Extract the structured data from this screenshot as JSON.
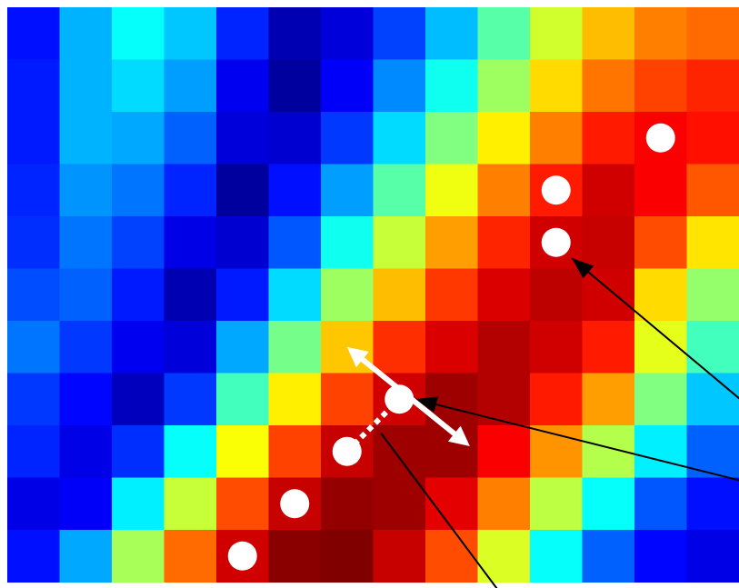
{
  "heatmap": {
    "colormap": "jet",
    "rows": 11,
    "cols": 14,
    "value_range": [
      0,
      1
    ],
    "values": [
      [
        0.14,
        0.3,
        0.38,
        0.32,
        0.16,
        0.05,
        0.09,
        0.19,
        0.31,
        0.46,
        0.58,
        0.69,
        0.75,
        0.77
      ],
      [
        0.15,
        0.3,
        0.34,
        0.28,
        0.11,
        0.03,
        0.12,
        0.26,
        0.39,
        0.53,
        0.66,
        0.76,
        0.81,
        0.84
      ],
      [
        0.15,
        0.3,
        0.29,
        0.22,
        0.09,
        0.08,
        0.18,
        0.34,
        0.5,
        0.64,
        0.75,
        0.85,
        0.88,
        0.86
      ],
      [
        0.16,
        0.27,
        0.24,
        0.16,
        0.03,
        0.14,
        0.28,
        0.46,
        0.61,
        0.75,
        0.85,
        0.92,
        0.88,
        0.79
      ],
      [
        0.17,
        0.24,
        0.19,
        0.1,
        0.08,
        0.21,
        0.39,
        0.57,
        0.72,
        0.84,
        0.92,
        0.93,
        0.8,
        0.65
      ],
      [
        0.2,
        0.22,
        0.15,
        0.05,
        0.15,
        0.34,
        0.53,
        0.69,
        0.82,
        0.91,
        0.94,
        0.92,
        0.66,
        0.52
      ],
      [
        0.24,
        0.18,
        0.11,
        0.09,
        0.29,
        0.49,
        0.68,
        0.83,
        0.91,
        0.95,
        0.92,
        0.85,
        0.6,
        0.44
      ],
      [
        0.18,
        0.13,
        0.06,
        0.18,
        0.44,
        0.64,
        0.81,
        0.92,
        0.97,
        0.95,
        0.85,
        0.72,
        0.5,
        0.32
      ],
      [
        0.16,
        0.1,
        0.17,
        0.38,
        0.62,
        0.81,
        0.93,
        0.97,
        0.97,
        0.88,
        0.73,
        0.55,
        0.36,
        0.22
      ],
      [
        0.1,
        0.12,
        0.36,
        0.57,
        0.8,
        0.93,
        0.98,
        0.97,
        0.9,
        0.75,
        0.56,
        0.38,
        0.21,
        0.14
      ],
      [
        0.14,
        0.29,
        0.54,
        0.77,
        0.92,
        0.99,
        1.0,
        0.93,
        0.8,
        0.59,
        0.38,
        0.22,
        0.13,
        0.1
      ]
    ]
  },
  "markers": {
    "fill": "#ffffff",
    "points": [
      {
        "col": 12.5,
        "row": 2.5
      },
      {
        "col": 10.5,
        "row": 3.5
      },
      {
        "col": 10.5,
        "row": 4.5
      },
      {
        "col": 7.5,
        "row": 7.5
      },
      {
        "col": 6.5,
        "row": 8.5
      },
      {
        "col": 5.5,
        "row": 9.5
      },
      {
        "col": 4.5,
        "row": 10.5
      }
    ]
  },
  "direction_arrow": {
    "color": "#ffffff",
    "from": {
      "col": 6.5,
      "row": 6.5
    },
    "to": {
      "col": 8.85,
      "row": 8.4
    }
  },
  "dotted_link": {
    "color": "#ffffff",
    "from": {
      "col": 6.5,
      "row": 8.5
    },
    "to": {
      "col": 7.5,
      "row": 7.5
    }
  },
  "pointer_lines": {
    "color": "#000000",
    "lines": [
      {
        "from": {
          "col": 14.2,
          "row": 7.65
        },
        "to": {
          "col": 10.8,
          "row": 4.8
        },
        "arrowhead": true
      },
      {
        "from": {
          "col": 14.2,
          "row": 9.1
        },
        "to": {
          "col": 7.8,
          "row": 7.5
        },
        "arrowhead": true
      },
      {
        "from": {
          "col": 9.5,
          "row": 11.3
        },
        "to": {
          "col": 7.15,
          "row": 8.15
        },
        "arrowhead": false
      }
    ]
  }
}
